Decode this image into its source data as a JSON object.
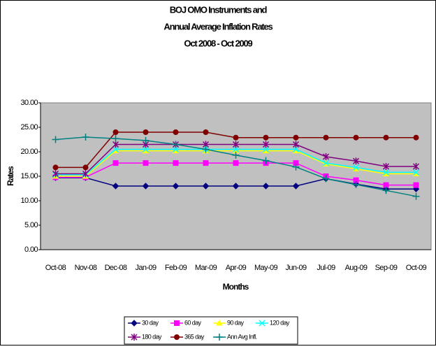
{
  "chart_data": {
    "type": "line",
    "title": [
      "BOJ OMO Instruments and",
      "Annual Average Inflation Rates",
      "Oct 2008 - Oct 2009"
    ],
    "x_label": "Months",
    "y_label": "Rates",
    "categories": [
      "Oct-08",
      "Nov-08",
      "Dec-08",
      "Jan-09",
      "Feb-09",
      "Mar-09",
      "Apr-09",
      "May-09",
      "Jun-09",
      "Jul-09",
      "Aug-09",
      "Sep-09",
      "Oct-09"
    ],
    "ylim": [
      0,
      30
    ],
    "yticks": [
      {
        "value": 0,
        "label": "0.00"
      },
      {
        "value": 5,
        "label": "5.00"
      },
      {
        "value": 10,
        "label": "10.00"
      },
      {
        "value": 15,
        "label": "15.00"
      },
      {
        "value": 20,
        "label": "20.00"
      },
      {
        "value": 25,
        "label": "25.00"
      },
      {
        "value": 30,
        "label": "30.00"
      }
    ],
    "grid": false,
    "series": [
      {
        "name": "30 day",
        "color": "#000080",
        "marker": "diamond",
        "values": [
          14.7,
          14.7,
          13.0,
          13.0,
          13.0,
          13.0,
          13.0,
          13.0,
          13.0,
          14.5,
          13.4,
          12.4,
          12.4
        ]
      },
      {
        "name": "60 day",
        "color": "#ff00ff",
        "marker": "square",
        "values": [
          14.8,
          14.8,
          17.7,
          17.7,
          17.7,
          17.7,
          17.7,
          17.7,
          17.7,
          15.0,
          14.2,
          13.2,
          13.2
        ]
      },
      {
        "name": "90 day",
        "color": "#ffff00",
        "marker": "triangle",
        "values": [
          15.0,
          15.0,
          20.2,
          20.2,
          20.2,
          20.2,
          20.2,
          20.2,
          20.2,
          17.5,
          16.5,
          15.5,
          15.5
        ]
      },
      {
        "name": "120 day",
        "color": "#00ffff",
        "marker": "x",
        "values": [
          15.3,
          15.3,
          20.5,
          20.5,
          20.5,
          20.5,
          20.5,
          20.5,
          20.5,
          17.7,
          16.8,
          15.8,
          15.8
        ]
      },
      {
        "name": "180 day",
        "color": "#800080",
        "marker": "star",
        "values": [
          15.5,
          15.5,
          21.5,
          21.5,
          21.5,
          21.5,
          21.5,
          21.5,
          21.5,
          19.0,
          18.1,
          17.0,
          17.0
        ]
      },
      {
        "name": "365 day",
        "color": "#800000",
        "marker": "circle",
        "values": [
          16.8,
          16.8,
          24.0,
          24.0,
          24.0,
          24.0,
          22.9,
          22.9,
          22.9,
          22.9,
          22.9,
          22.9,
          22.9
        ]
      },
      {
        "name": "Ann Avg Infl.",
        "color": "#008080",
        "marker": "plus",
        "values": [
          22.5,
          23.0,
          22.7,
          22.3,
          21.5,
          20.5,
          19.3,
          18.2,
          16.9,
          14.5,
          13.3,
          12.1,
          10.9
        ]
      }
    ],
    "legend_position": "bottom"
  }
}
